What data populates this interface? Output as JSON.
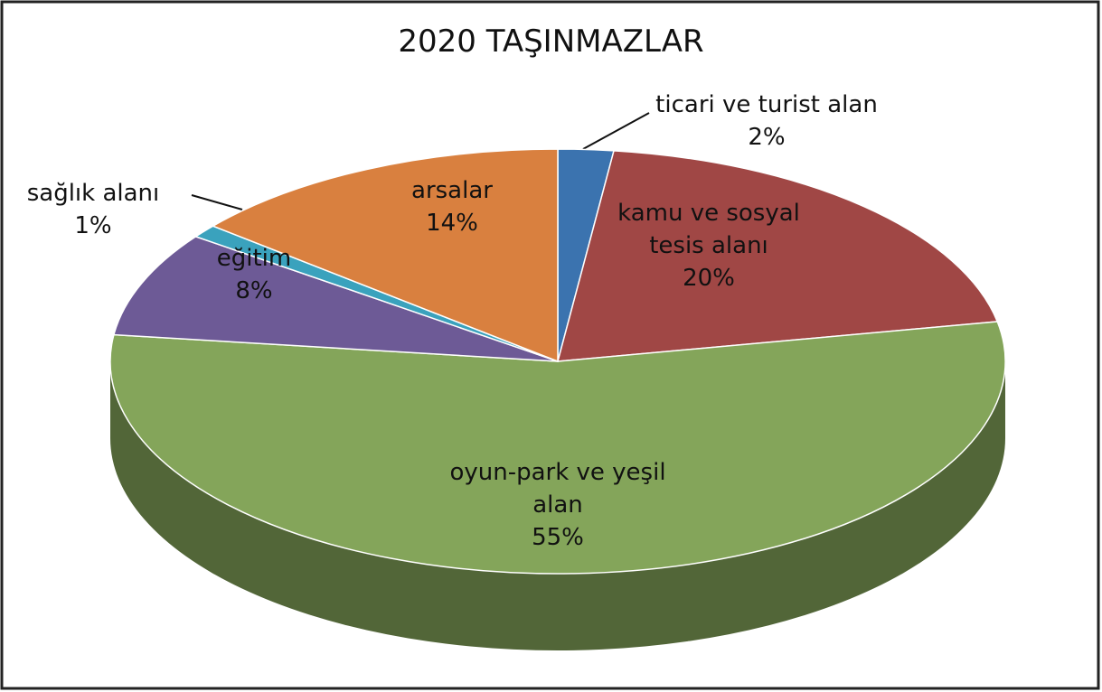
{
  "chart_data": {
    "type": "pie",
    "title": "2020 TAŞINMAZLAR",
    "categories": [
      "ticari ve turist alan",
      "kamu ve sosyal tesis alanı",
      "oyun-park ve yeşil alan",
      "eğitim",
      "sağlık alanı",
      "arsalar"
    ],
    "values": [
      2,
      20,
      55,
      8,
      1,
      14
    ],
    "value_labels": [
      "2%",
      "20%",
      "55%",
      "8%",
      "1%",
      "14%"
    ],
    "colors": [
      "#3b73af",
      "#a04745",
      "#84a55a",
      "#6d5a96",
      "#3aa2bd",
      "#d9803f"
    ]
  }
}
